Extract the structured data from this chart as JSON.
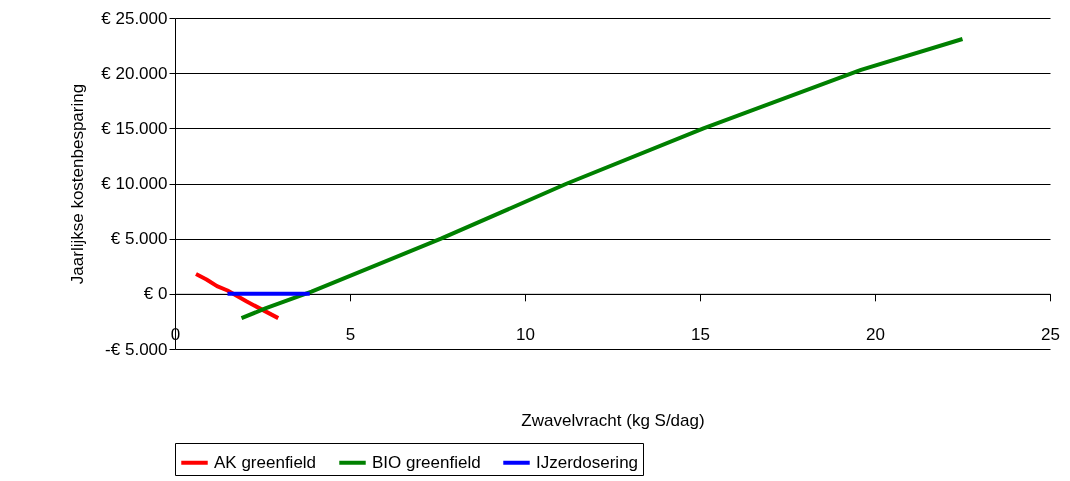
{
  "chart_data": {
    "type": "line",
    "xlabel": "Zwavelvracht (kg S/dag)",
    "ylabel": "Jaarlijkse kostenbesparing",
    "xlim": [
      0,
      25
    ],
    "xticks": [
      0,
      5,
      10,
      15,
      20,
      25
    ],
    "ylim": [
      -5000,
      25000
    ],
    "yticks": [
      {
        "value": -5000,
        "label": "-€ 5.000"
      },
      {
        "value": 0,
        "label": "€ 0"
      },
      {
        "value": 5000,
        "label": "€ 5.000"
      },
      {
        "value": 10000,
        "label": "€ 10.000"
      },
      {
        "value": 15000,
        "label": "€ 15.000"
      },
      {
        "value": 20000,
        "label": "€ 20.000"
      },
      {
        "value": 25000,
        "label": "€ 25.000"
      }
    ],
    "grid": "y",
    "legend": "bottom",
    "marker": "none",
    "line_style": "solid",
    "series": [
      {
        "name": "AK greenfield",
        "color": "#ff0000",
        "x": [
          0.6,
          0.9,
          1.2,
          1.5,
          2.05,
          2.95
        ],
        "values": [
          1800,
          1300,
          700,
          300,
          -700,
          -2200
        ]
      },
      {
        "name": "BIO greenfield",
        "color": "#008000",
        "x": [
          1.9,
          2.6,
          3.9,
          7.6,
          11.2,
          15.1,
          19.6,
          22.5
        ],
        "values": [
          -2200,
          -1300,
          200,
          5000,
          10000,
          15000,
          20300,
          23100
        ]
      },
      {
        "name": "IJzerdosering",
        "color": "#0000ff",
        "x": [
          1.5,
          3.85
        ],
        "values": [
          0,
          0
        ]
      }
    ]
  }
}
